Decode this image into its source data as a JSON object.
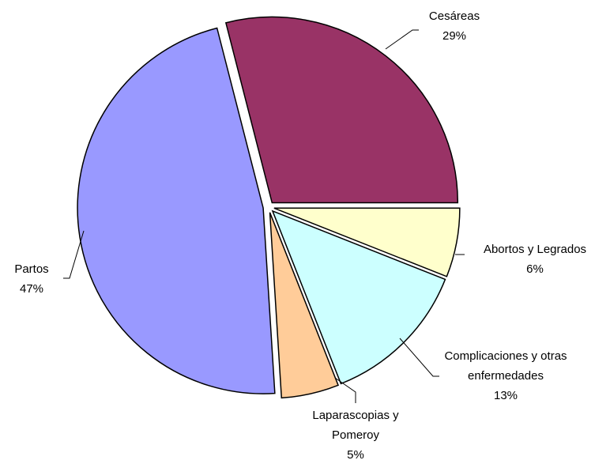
{
  "chart_data": {
    "type": "pie",
    "categories": [
      "Cesáreas",
      "Abortos y Legrados",
      "Complicaciones y otras enfermedades",
      "Laparascopias y Pomeroy",
      "Partos"
    ],
    "values": [
      29,
      6,
      13,
      5,
      47
    ],
    "value_labels": [
      "29%",
      "6%",
      "13%",
      "5%",
      "47%"
    ],
    "colors": [
      "#993366",
      "#ffffcc",
      "#ccffff",
      "#ffcc99",
      "#9999ff"
    ]
  }
}
